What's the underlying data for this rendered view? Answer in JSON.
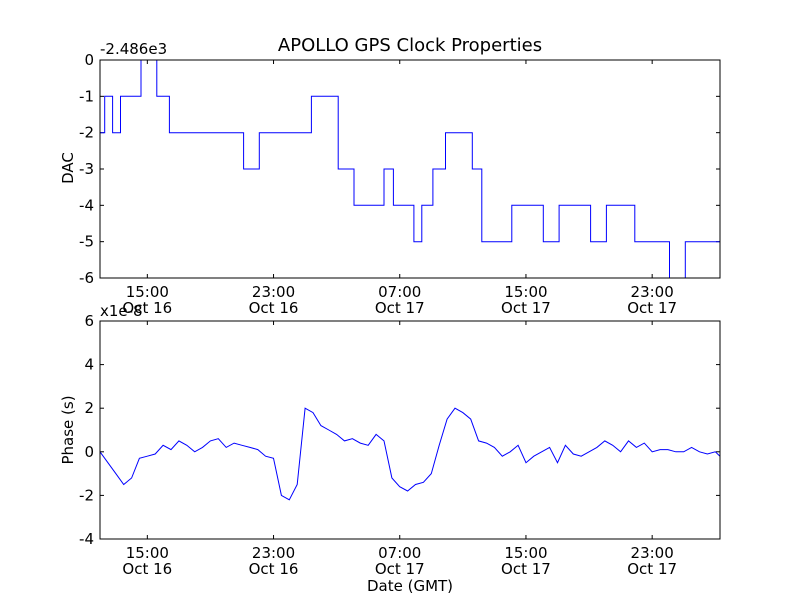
{
  "page": {
    "title": "APOLLO GPS Clock Properties"
  },
  "chart_data": [
    {
      "type": "line",
      "title": "APOLLO GPS Clock Properties",
      "ylabel": "DAC",
      "xlabel": "",
      "offset_label": "-2.486e3",
      "ylim": [
        -6,
        0
      ],
      "yticks": [
        0,
        -1,
        -2,
        -3,
        -4,
        -5,
        -6
      ],
      "ytick_labels": [
        "0",
        "-1",
        "-2",
        "-3",
        "-4",
        "-5",
        "-6"
      ],
      "xlim_hours": [
        12.0,
        51.3
      ],
      "xtick_hours": [
        15,
        23,
        31,
        39,
        47
      ],
      "xtick_labels": [
        {
          "time": "15:00",
          "date": "Oct 16"
        },
        {
          "time": "23:00",
          "date": "Oct 16"
        },
        {
          "time": "07:00",
          "date": "Oct 17"
        },
        {
          "time": "15:00",
          "date": "Oct 17"
        },
        {
          "time": "23:00",
          "date": "Oct 17"
        }
      ],
      "series_color": "#0000ff",
      "grid": false,
      "legend": "none",
      "x": [
        12.0,
        12.3,
        12.8,
        13.3,
        14.1,
        14.6,
        15.6,
        16.2,
        16.4,
        17.1,
        18.1,
        19.1,
        20.1,
        21.1,
        22.1,
        23.1,
        23.6,
        24.7,
        25.4,
        26.1,
        27.1,
        28.1,
        28.9,
        30.0,
        30.6,
        31.1,
        31.9,
        32.4,
        33.1,
        33.9,
        34.7,
        35.6,
        36.2,
        37.1,
        38.1,
        39.1,
        40.1,
        41.1,
        42.1,
        43.1,
        44.1,
        45.1,
        45.9,
        47.2,
        48.1,
        49.1,
        50.1,
        51.3
      ],
      "values": [
        -2,
        -1,
        -2,
        -1,
        -1,
        0,
        -1,
        -1,
        -2,
        -2,
        -2,
        -2,
        -2,
        -3,
        -2,
        -2,
        -2,
        -2,
        -1,
        -1,
        -3,
        -4,
        -4,
        -3,
        -4,
        -4,
        -5,
        -4,
        -3,
        -2,
        -2,
        -3,
        -5,
        -5,
        -4,
        -4,
        -5,
        -4,
        -4,
        -5,
        -4,
        -4,
        -5,
        -5,
        -6,
        -5,
        -5,
        -5
      ]
    },
    {
      "type": "line",
      "title": "",
      "ylabel": "Phase (s)",
      "xlabel": "Date (GMT)",
      "offset_label": "x1e-8",
      "ylim": [
        -4,
        6
      ],
      "yticks": [
        6,
        4,
        2,
        0,
        -2,
        -4
      ],
      "ytick_labels": [
        "6",
        "4",
        "2",
        "0",
        "-2",
        "-4"
      ],
      "xlim_hours": [
        12.0,
        51.3
      ],
      "xtick_hours": [
        15,
        23,
        31,
        39,
        47
      ],
      "xtick_labels": [
        {
          "time": "15:00",
          "date": "Oct 16"
        },
        {
          "time": "23:00",
          "date": "Oct 16"
        },
        {
          "time": "07:00",
          "date": "Oct 17"
        },
        {
          "time": "15:00",
          "date": "Oct 17"
        },
        {
          "time": "23:00",
          "date": "Oct 17"
        }
      ],
      "series_color": "#0000ff",
      "grid": false,
      "legend": "none",
      "x": [
        12.0,
        12.5,
        13.0,
        13.5,
        14.0,
        14.5,
        15.0,
        15.5,
        16.0,
        16.5,
        17.0,
        17.5,
        18.0,
        18.5,
        19.0,
        19.5,
        20.0,
        20.5,
        21.0,
        21.5,
        22.0,
        22.5,
        23.0,
        23.5,
        24.0,
        24.5,
        25.0,
        25.5,
        26.0,
        26.5,
        27.0,
        27.5,
        28.0,
        28.5,
        29.0,
        29.5,
        30.0,
        30.5,
        31.0,
        31.5,
        32.0,
        32.5,
        33.0,
        33.5,
        34.0,
        34.5,
        35.0,
        35.5,
        36.0,
        36.5,
        37.0,
        37.5,
        38.0,
        38.5,
        39.0,
        39.5,
        40.0,
        40.5,
        41.0,
        41.5,
        42.0,
        42.5,
        43.0,
        43.5,
        44.0,
        44.5,
        45.0,
        45.5,
        46.0,
        46.5,
        47.0,
        47.5,
        48.0,
        48.5,
        49.0,
        49.5,
        50.0,
        50.5,
        51.0,
        51.3
      ],
      "values": [
        0.0,
        -0.5,
        -1.0,
        -1.5,
        -1.2,
        -0.3,
        -0.2,
        -0.1,
        0.3,
        0.1,
        0.5,
        0.3,
        0.0,
        0.2,
        0.5,
        0.6,
        0.2,
        0.4,
        0.3,
        0.2,
        0.1,
        -0.2,
        -0.3,
        -2.0,
        -2.2,
        -1.5,
        2.0,
        1.8,
        1.2,
        1.0,
        0.8,
        0.5,
        0.6,
        0.4,
        0.3,
        0.8,
        0.5,
        -1.2,
        -1.6,
        -1.8,
        -1.5,
        -1.4,
        -1.0,
        0.3,
        1.5,
        2.0,
        1.8,
        1.5,
        0.5,
        0.4,
        0.2,
        -0.2,
        0.0,
        0.3,
        -0.5,
        -0.2,
        0.0,
        0.2,
        -0.5,
        0.3,
        -0.1,
        -0.2,
        0.0,
        0.2,
        0.5,
        0.3,
        0.0,
        0.5,
        0.2,
        0.4,
        0.0,
        0.1,
        0.1,
        0.0,
        0.0,
        0.2,
        0.0,
        -0.1,
        0.0,
        -0.2
      ]
    }
  ]
}
